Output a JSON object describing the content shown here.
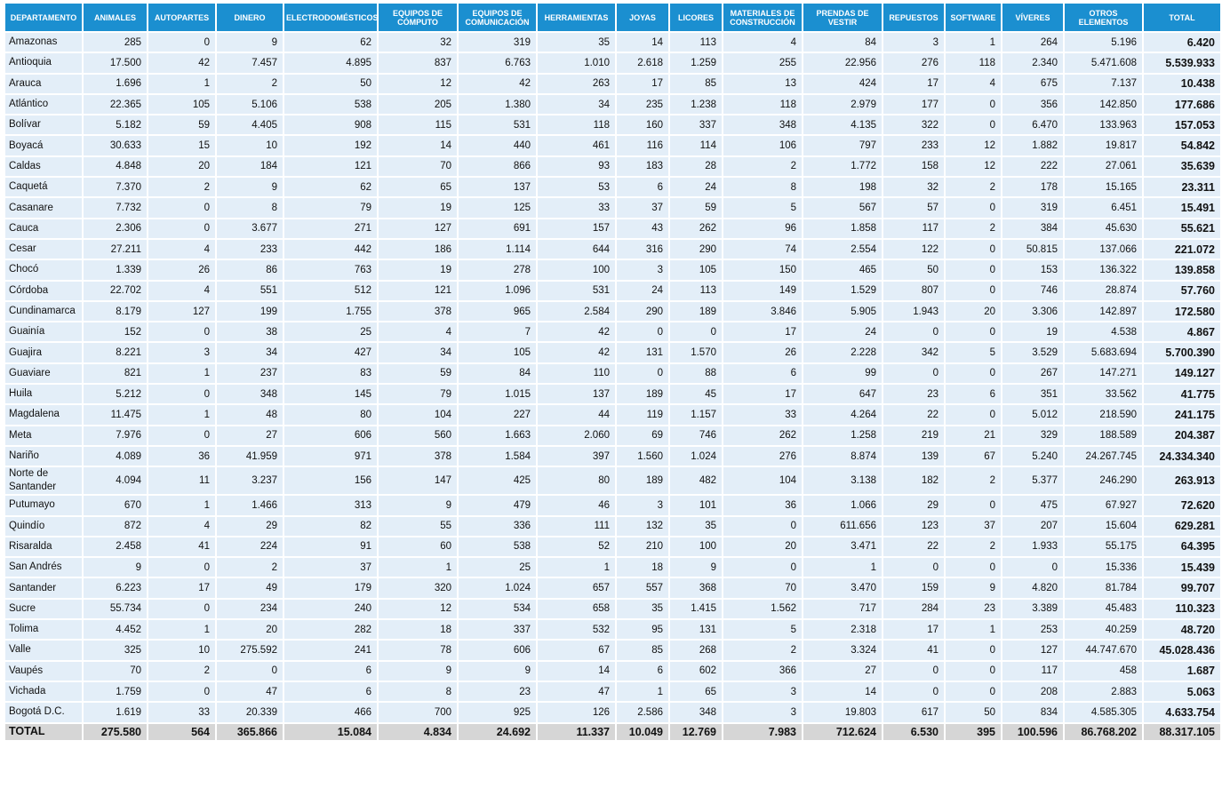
{
  "table": {
    "header": [
      "DEPARTAMENTO",
      "ANIMALES",
      "AUTOPARTES",
      "DINERO",
      "ELECTRODOMÉSTICOS",
      "EQUIPOS DE CÓMPUTO",
      "EQUIPOS DE COMUNICACIÓN",
      "HERRAMIENTAS",
      "JOYAS",
      "LICORES",
      "MATERIALES DE CONSTRUCCIÓN",
      "PRENDAS DE VESTIR",
      "REPUESTOS",
      "SOFTWARE",
      "VÍVERES",
      "OTROS ELEMENTOS",
      "TOTAL"
    ],
    "rows": [
      [
        "Amazonas",
        "285",
        "0",
        "9",
        "62",
        "32",
        "319",
        "35",
        "14",
        "113",
        "4",
        "84",
        "3",
        "1",
        "264",
        "5.196",
        "6.420"
      ],
      [
        "Antioquia",
        "17.500",
        "42",
        "7.457",
        "4.895",
        "837",
        "6.763",
        "1.010",
        "2.618",
        "1.259",
        "255",
        "22.956",
        "276",
        "118",
        "2.340",
        "5.471.608",
        "5.539.933"
      ],
      [
        "Arauca",
        "1.696",
        "1",
        "2",
        "50",
        "12",
        "42",
        "263",
        "17",
        "85",
        "13",
        "424",
        "17",
        "4",
        "675",
        "7.137",
        "10.438"
      ],
      [
        "Atlántico",
        "22.365",
        "105",
        "5.106",
        "538",
        "205",
        "1.380",
        "34",
        "235",
        "1.238",
        "118",
        "2.979",
        "177",
        "0",
        "356",
        "142.850",
        "177.686"
      ],
      [
        "Bolívar",
        "5.182",
        "59",
        "4.405",
        "908",
        "115",
        "531",
        "118",
        "160",
        "337",
        "348",
        "4.135",
        "322",
        "0",
        "6.470",
        "133.963",
        "157.053"
      ],
      [
        "Boyacá",
        "30.633",
        "15",
        "10",
        "192",
        "14",
        "440",
        "461",
        "116",
        "114",
        "106",
        "797",
        "233",
        "12",
        "1.882",
        "19.817",
        "54.842"
      ],
      [
        "Caldas",
        "4.848",
        "20",
        "184",
        "121",
        "70",
        "866",
        "93",
        "183",
        "28",
        "2",
        "1.772",
        "158",
        "12",
        "222",
        "27.061",
        "35.639"
      ],
      [
        "Caquetá",
        "7.370",
        "2",
        "9",
        "62",
        "65",
        "137",
        "53",
        "6",
        "24",
        "8",
        "198",
        "32",
        "2",
        "178",
        "15.165",
        "23.311"
      ],
      [
        "Casanare",
        "7.732",
        "0",
        "8",
        "79",
        "19",
        "125",
        "33",
        "37",
        "59",
        "5",
        "567",
        "57",
        "0",
        "319",
        "6.451",
        "15.491"
      ],
      [
        "Cauca",
        "2.306",
        "0",
        "3.677",
        "271",
        "127",
        "691",
        "157",
        "43",
        "262",
        "96",
        "1.858",
        "117",
        "2",
        "384",
        "45.630",
        "55.621"
      ],
      [
        "Cesar",
        "27.211",
        "4",
        "233",
        "442",
        "186",
        "1.114",
        "644",
        "316",
        "290",
        "74",
        "2.554",
        "122",
        "0",
        "50.815",
        "137.066",
        "221.072"
      ],
      [
        "Chocó",
        "1.339",
        "26",
        "86",
        "763",
        "19",
        "278",
        "100",
        "3",
        "105",
        "150",
        "465",
        "50",
        "0",
        "153",
        "136.322",
        "139.858"
      ],
      [
        "Córdoba",
        "22.702",
        "4",
        "551",
        "512",
        "121",
        "1.096",
        "531",
        "24",
        "113",
        "149",
        "1.529",
        "807",
        "0",
        "746",
        "28.874",
        "57.760"
      ],
      [
        "Cundinamarca",
        "8.179",
        "127",
        "199",
        "1.755",
        "378",
        "965",
        "2.584",
        "290",
        "189",
        "3.846",
        "5.905",
        "1.943",
        "20",
        "3.306",
        "142.897",
        "172.580"
      ],
      [
        "Guainía",
        "152",
        "0",
        "38",
        "25",
        "4",
        "7",
        "42",
        "0",
        "0",
        "17",
        "24",
        "0",
        "0",
        "19",
        "4.538",
        "4.867"
      ],
      [
        "Guajira",
        "8.221",
        "3",
        "34",
        "427",
        "34",
        "105",
        "42",
        "131",
        "1.570",
        "26",
        "2.228",
        "342",
        "5",
        "3.529",
        "5.683.694",
        "5.700.390"
      ],
      [
        "Guaviare",
        "821",
        "1",
        "237",
        "83",
        "59",
        "84",
        "110",
        "0",
        "88",
        "6",
        "99",
        "0",
        "0",
        "267",
        "147.271",
        "149.127"
      ],
      [
        "Huila",
        "5.212",
        "0",
        "348",
        "145",
        "79",
        "1.015",
        "137",
        "189",
        "45",
        "17",
        "647",
        "23",
        "6",
        "351",
        "33.562",
        "41.775"
      ],
      [
        "Magdalena",
        "11.475",
        "1",
        "48",
        "80",
        "104",
        "227",
        "44",
        "119",
        "1.157",
        "33",
        "4.264",
        "22",
        "0",
        "5.012",
        "218.590",
        "241.175"
      ],
      [
        "Meta",
        "7.976",
        "0",
        "27",
        "606",
        "560",
        "1.663",
        "2.060",
        "69",
        "746",
        "262",
        "1.258",
        "219",
        "21",
        "329",
        "188.589",
        "204.387"
      ],
      [
        "Nariño",
        "4.089",
        "36",
        "41.959",
        "971",
        "378",
        "1.584",
        "397",
        "1.560",
        "1.024",
        "276",
        "8.874",
        "139",
        "67",
        "5.240",
        "24.267.745",
        "24.334.340"
      ],
      [
        "Norte de Santander",
        "4.094",
        "11",
        "3.237",
        "156",
        "147",
        "425",
        "80",
        "189",
        "482",
        "104",
        "3.138",
        "182",
        "2",
        "5.377",
        "246.290",
        "263.913"
      ],
      [
        "Putumayo",
        "670",
        "1",
        "1.466",
        "313",
        "9",
        "479",
        "46",
        "3",
        "101",
        "36",
        "1.066",
        "29",
        "0",
        "475",
        "67.927",
        "72.620"
      ],
      [
        "Quindío",
        "872",
        "4",
        "29",
        "82",
        "55",
        "336",
        "111",
        "132",
        "35",
        "0",
        "611.656",
        "123",
        "37",
        "207",
        "15.604",
        "629.281"
      ],
      [
        "Risaralda",
        "2.458",
        "41",
        "224",
        "91",
        "60",
        "538",
        "52",
        "210",
        "100",
        "20",
        "3.471",
        "22",
        "2",
        "1.933",
        "55.175",
        "64.395"
      ],
      [
        "San Andrés",
        "9",
        "0",
        "2",
        "37",
        "1",
        "25",
        "1",
        "18",
        "9",
        "0",
        "1",
        "0",
        "0",
        "0",
        "15.336",
        "15.439"
      ],
      [
        "Santander",
        "6.223",
        "17",
        "49",
        "179",
        "320",
        "1.024",
        "657",
        "557",
        "368",
        "70",
        "3.470",
        "159",
        "9",
        "4.820",
        "81.784",
        "99.707"
      ],
      [
        "Sucre",
        "55.734",
        "0",
        "234",
        "240",
        "12",
        "534",
        "658",
        "35",
        "1.415",
        "1.562",
        "717",
        "284",
        "23",
        "3.389",
        "45.483",
        "110.323"
      ],
      [
        "Tolima",
        "4.452",
        "1",
        "20",
        "282",
        "18",
        "337",
        "532",
        "95",
        "131",
        "5",
        "2.318",
        "17",
        "1",
        "253",
        "40.259",
        "48.720"
      ],
      [
        "Valle",
        "325",
        "10",
        "275.592",
        "241",
        "78",
        "606",
        "67",
        "85",
        "268",
        "2",
        "3.324",
        "41",
        "0",
        "127",
        "44.747.670",
        "45.028.436"
      ],
      [
        "Vaupés",
        "70",
        "2",
        "0",
        "6",
        "9",
        "9",
        "14",
        "6",
        "602",
        "366",
        "27",
        "0",
        "0",
        "117",
        "458",
        "1.687"
      ],
      [
        "Vichada",
        "1.759",
        "0",
        "47",
        "6",
        "8",
        "23",
        "47",
        "1",
        "65",
        "3",
        "14",
        "0",
        "0",
        "208",
        "2.883",
        "5.063"
      ],
      [
        "Bogotá D.C.",
        "1.619",
        "33",
        "20.339",
        "466",
        "700",
        "925",
        "126",
        "2.586",
        "348",
        "3",
        "19.803",
        "617",
        "50",
        "834",
        "4.585.305",
        "4.633.754"
      ]
    ],
    "total": [
      "TOTAL",
      "275.580",
      "564",
      "365.866",
      "15.084",
      "4.834",
      "24.692",
      "11.337",
      "10.049",
      "12.769",
      "7.983",
      "712.624",
      "6.530",
      "395",
      "100.596",
      "86.768.202",
      "88.317.105"
    ]
  }
}
